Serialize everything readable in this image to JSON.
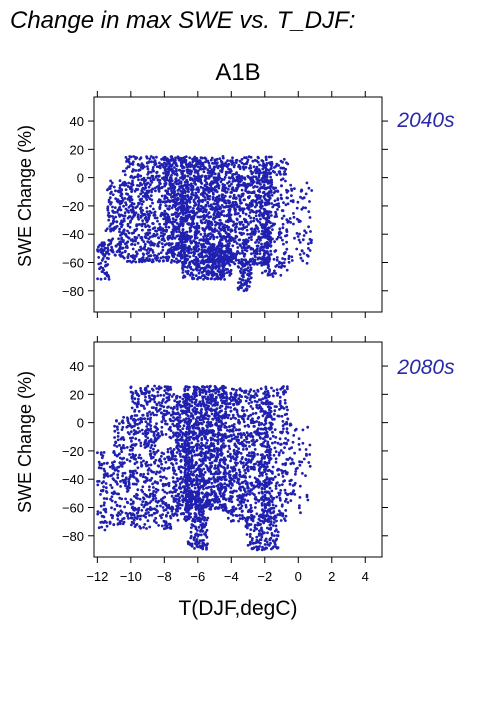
{
  "figure": {
    "title": "Change in max SWE vs. T_DJF:",
    "scenario": "A1B",
    "point_color": "#2020b0",
    "period_color": "#2a2aa8"
  },
  "chart_data": [
    {
      "type": "scatter",
      "label": "2040s",
      "ylabel": "SWE Change (%)",
      "xlabel": "",
      "xlim": [
        -12.2,
        5
      ],
      "ylim": [
        -95,
        57
      ],
      "xticks": [
        -12,
        -10,
        -8,
        -6,
        -4,
        -2,
        0,
        2,
        4
      ],
      "yticks": [
        -80,
        -60,
        -40,
        -20,
        0,
        20,
        40
      ],
      "point_color": "#2020b0",
      "x_range_of_points": [
        -12,
        0.8
      ],
      "y_range_of_points": [
        -80,
        23
      ],
      "grid": false,
      "clusters": [
        {
          "x": [
            -12.0,
            -11.3
          ],
          "y": [
            -72,
            -45
          ],
          "n": 60
        },
        {
          "x": [
            -11.5,
            -10.5
          ],
          "y": [
            -55,
            -2
          ],
          "n": 110
        },
        {
          "x": [
            -10.7,
            -8.0
          ],
          "y": [
            -60,
            15
          ],
          "n": 560
        },
        {
          "x": [
            -8.0,
            -6.8
          ],
          "y": [
            -60,
            15
          ],
          "n": 420
        },
        {
          "x": [
            -7.0,
            -4.3
          ],
          "y": [
            -72,
            15
          ],
          "n": 1050
        },
        {
          "x": [
            -5.5,
            -4.0
          ],
          "y": [
            -70,
            -48
          ],
          "n": 140
        },
        {
          "x": [
            -4.3,
            -1.6
          ],
          "y": [
            -62,
            15
          ],
          "n": 720
        },
        {
          "x": [
            -3.6,
            -2.8
          ],
          "y": [
            -80,
            -58
          ],
          "n": 80
        },
        {
          "x": [
            -2.2,
            -0.6
          ],
          "y": [
            -70,
            14
          ],
          "n": 240
        },
        {
          "x": [
            -0.6,
            0.8
          ],
          "y": [
            -62,
            0
          ],
          "n": 70
        }
      ]
    },
    {
      "type": "scatter",
      "label": "2080s",
      "ylabel": "SWE Change (%)",
      "xlabel": "T(DJF,degC)",
      "xlim": [
        -12.2,
        5
      ],
      "ylim": [
        -95,
        57
      ],
      "xticks": [
        -12,
        -10,
        -8,
        -6,
        -4,
        -2,
        0,
        2,
        4
      ],
      "yticks": [
        -80,
        -60,
        -40,
        -20,
        0,
        20,
        40
      ],
      "point_color": "#2020b0",
      "x_range_of_points": [
        -12,
        0.8
      ],
      "y_range_of_points": [
        -90,
        26
      ],
      "grid": false,
      "clusters": [
        {
          "x": [
            -12.0,
            -11.0
          ],
          "y": [
            -76,
            -20
          ],
          "n": 90
        },
        {
          "x": [
            -11.0,
            -9.8
          ],
          "y": [
            -72,
            5
          ],
          "n": 160
        },
        {
          "x": [
            -10.0,
            -7.5
          ],
          "y": [
            -75,
            26
          ],
          "n": 560
        },
        {
          "x": [
            -7.5,
            -6.5
          ],
          "y": [
            -70,
            20
          ],
          "n": 330
        },
        {
          "x": [
            -6.6,
            -5.4
          ],
          "y": [
            -90,
            -50
          ],
          "n": 160
        },
        {
          "x": [
            -6.8,
            -4.3
          ],
          "y": [
            -62,
            26
          ],
          "n": 1000
        },
        {
          "x": [
            -4.3,
            -1.6
          ],
          "y": [
            -70,
            24
          ],
          "n": 720
        },
        {
          "x": [
            -3.2,
            -1.2
          ],
          "y": [
            -90,
            -65
          ],
          "n": 140
        },
        {
          "x": [
            -2.0,
            -0.6
          ],
          "y": [
            -70,
            26
          ],
          "n": 230
        },
        {
          "x": [
            -0.6,
            0.8
          ],
          "y": [
            -65,
            0
          ],
          "n": 60
        }
      ]
    }
  ]
}
